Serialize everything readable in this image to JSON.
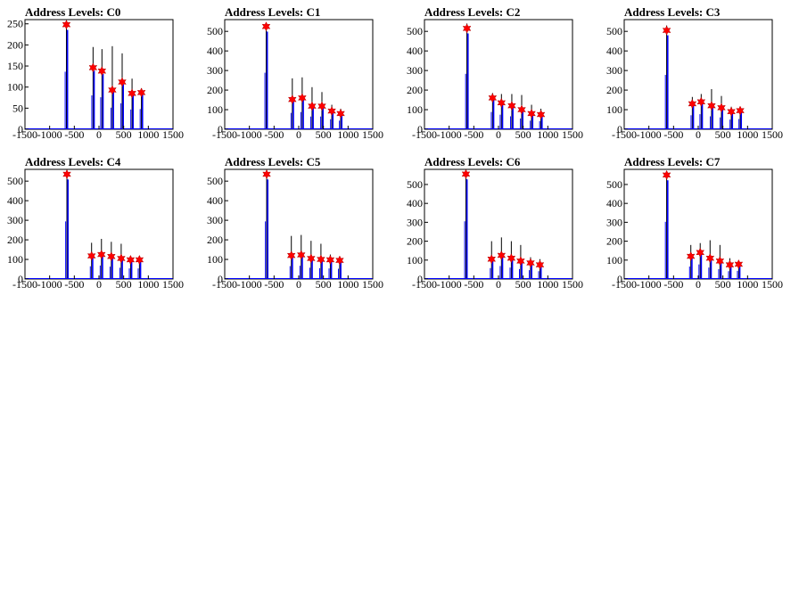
{
  "colors": {
    "hist": "#0000ff",
    "peak_marker": "#ff0000",
    "axis": "#000000"
  },
  "chart_data": [
    {
      "type": "histogram",
      "title": "Address Levels: C0",
      "xlim": [
        -1500,
        1500
      ],
      "ylim": [
        0,
        260
      ],
      "xticks": [
        "-1500",
        "-1000",
        "-500",
        "0",
        "500",
        "1000",
        "1500"
      ],
      "yticks": [
        0,
        50,
        100,
        150,
        200,
        250
      ],
      "peaks": [
        {
          "x": -660,
          "y": 248
        },
        {
          "x": -120,
          "y": 146
        },
        {
          "x": 60,
          "y": 138
        },
        {
          "x": 270,
          "y": 93
        },
        {
          "x": 470,
          "y": 112
        },
        {
          "x": 670,
          "y": 85
        },
        {
          "x": 860,
          "y": 87
        }
      ],
      "spikes": [
        {
          "x": -660,
          "y": 255
        },
        {
          "x": -120,
          "y": 195
        },
        {
          "x": 60,
          "y": 190
        },
        {
          "x": 270,
          "y": 197
        },
        {
          "x": 470,
          "y": 180
        },
        {
          "x": 670,
          "y": 120
        },
        {
          "x": 860,
          "y": 97
        }
      ]
    },
    {
      "type": "histogram",
      "title": "Address Levels: C1",
      "xlim": [
        -1500,
        1500
      ],
      "ylim": [
        0,
        560
      ],
      "xticks": [
        "-1500",
        "-1000",
        "-500",
        "0",
        "500",
        "1000",
        "1500"
      ],
      "yticks": [
        0,
        100,
        200,
        300,
        400,
        500
      ],
      "peaks": [
        {
          "x": -660,
          "y": 525
        },
        {
          "x": -130,
          "y": 152
        },
        {
          "x": 70,
          "y": 160
        },
        {
          "x": 270,
          "y": 118
        },
        {
          "x": 470,
          "y": 118
        },
        {
          "x": 670,
          "y": 93
        },
        {
          "x": 850,
          "y": 80
        }
      ],
      "spikes": [
        {
          "x": -660,
          "y": 540
        },
        {
          "x": -130,
          "y": 260
        },
        {
          "x": 70,
          "y": 265
        },
        {
          "x": 270,
          "y": 215
        },
        {
          "x": 470,
          "y": 190
        },
        {
          "x": 670,
          "y": 125
        },
        {
          "x": 850,
          "y": 105
        }
      ]
    },
    {
      "type": "histogram",
      "title": "Address Levels: C2",
      "xlim": [
        -1500,
        1500
      ],
      "ylim": [
        0,
        560
      ],
      "xticks": [
        "-1500",
        "-1000",
        "-500",
        "0",
        "500",
        "1000",
        "1500"
      ],
      "yticks": [
        0,
        100,
        200,
        300,
        400,
        500
      ],
      "peaks": [
        {
          "x": -640,
          "y": 515
        },
        {
          "x": -120,
          "y": 160
        },
        {
          "x": 60,
          "y": 135
        },
        {
          "x": 270,
          "y": 120
        },
        {
          "x": 470,
          "y": 100
        },
        {
          "x": 670,
          "y": 80
        },
        {
          "x": 860,
          "y": 75
        }
      ],
      "spikes": [
        {
          "x": -640,
          "y": 540
        },
        {
          "x": -120,
          "y": 185
        },
        {
          "x": 60,
          "y": 180
        },
        {
          "x": 270,
          "y": 180
        },
        {
          "x": 470,
          "y": 175
        },
        {
          "x": 670,
          "y": 125
        },
        {
          "x": 860,
          "y": 105
        }
      ]
    },
    {
      "type": "histogram",
      "title": "Address Levels: C3",
      "xlim": [
        -1500,
        1500
      ],
      "ylim": [
        0,
        560
      ],
      "xticks": [
        "-1500",
        "-1000",
        "-500",
        "0",
        "500",
        "1000",
        "1500"
      ],
      "yticks": [
        0,
        100,
        200,
        300,
        400,
        500
      ],
      "peaks": [
        {
          "x": -640,
          "y": 505
        },
        {
          "x": -120,
          "y": 130
        },
        {
          "x": 60,
          "y": 140
        },
        {
          "x": 270,
          "y": 120
        },
        {
          "x": 470,
          "y": 110
        },
        {
          "x": 670,
          "y": 90
        },
        {
          "x": 850,
          "y": 95
        }
      ],
      "spikes": [
        {
          "x": -640,
          "y": 530
        },
        {
          "x": -120,
          "y": 165
        },
        {
          "x": 60,
          "y": 180
        },
        {
          "x": 270,
          "y": 205
        },
        {
          "x": 470,
          "y": 170
        },
        {
          "x": 670,
          "y": 115
        },
        {
          "x": 850,
          "y": 110
        }
      ]
    },
    {
      "type": "histogram",
      "title": "Address Levels: C4",
      "xlim": [
        -1500,
        1500
      ],
      "ylim": [
        0,
        560
      ],
      "xticks": [
        "-1500",
        "-1000",
        "-500",
        "0",
        "500",
        "1000",
        "1500"
      ],
      "yticks": [
        0,
        100,
        200,
        300,
        400,
        500
      ],
      "peaks": [
        {
          "x": -650,
          "y": 535
        },
        {
          "x": -150,
          "y": 118
        },
        {
          "x": 50,
          "y": 125
        },
        {
          "x": 250,
          "y": 115
        },
        {
          "x": 450,
          "y": 105
        },
        {
          "x": 640,
          "y": 98
        },
        {
          "x": 820,
          "y": 98
        }
      ],
      "spikes": [
        {
          "x": -650,
          "y": 545
        },
        {
          "x": -150,
          "y": 185
        },
        {
          "x": 50,
          "y": 205
        },
        {
          "x": 250,
          "y": 190
        },
        {
          "x": 450,
          "y": 180
        },
        {
          "x": 640,
          "y": 115
        },
        {
          "x": 820,
          "y": 110
        }
      ]
    },
    {
      "type": "histogram",
      "title": "Address Levels: C5",
      "xlim": [
        -1500,
        1500
      ],
      "ylim": [
        0,
        560
      ],
      "xticks": [
        "-1500",
        "-1000",
        "-500",
        "0",
        "500",
        "1000",
        "1500"
      ],
      "yticks": [
        0,
        100,
        200,
        300,
        400,
        500
      ],
      "peaks": [
        {
          "x": -650,
          "y": 535
        },
        {
          "x": -150,
          "y": 120
        },
        {
          "x": 50,
          "y": 123
        },
        {
          "x": 250,
          "y": 105
        },
        {
          "x": 450,
          "y": 100
        },
        {
          "x": 640,
          "y": 98
        },
        {
          "x": 830,
          "y": 95
        }
      ],
      "spikes": [
        {
          "x": -650,
          "y": 545
        },
        {
          "x": -150,
          "y": 220
        },
        {
          "x": 50,
          "y": 225
        },
        {
          "x": 250,
          "y": 195
        },
        {
          "x": 450,
          "y": 180
        },
        {
          "x": 640,
          "y": 125
        },
        {
          "x": 830,
          "y": 110
        }
      ]
    },
    {
      "type": "histogram",
      "title": "Address Levels: C6",
      "xlim": [
        -1500,
        1500
      ],
      "ylim": [
        0,
        580
      ],
      "xticks": [
        "-1500",
        "-1000",
        "-500",
        "0",
        "500",
        "1000",
        "1500"
      ],
      "yticks": [
        0,
        100,
        200,
        300,
        400,
        500
      ],
      "peaks": [
        {
          "x": -660,
          "y": 555
        },
        {
          "x": -140,
          "y": 105
        },
        {
          "x": 60,
          "y": 125
        },
        {
          "x": 260,
          "y": 110
        },
        {
          "x": 450,
          "y": 95
        },
        {
          "x": 650,
          "y": 85
        },
        {
          "x": 840,
          "y": 75
        }
      ],
      "spikes": [
        {
          "x": -660,
          "y": 570
        },
        {
          "x": -140,
          "y": 200
        },
        {
          "x": 60,
          "y": 220
        },
        {
          "x": 260,
          "y": 200
        },
        {
          "x": 450,
          "y": 180
        },
        {
          "x": 650,
          "y": 115
        },
        {
          "x": 840,
          "y": 105
        }
      ]
    },
    {
      "type": "histogram",
      "title": "Address Levels: C7",
      "xlim": [
        -1500,
        1500
      ],
      "ylim": [
        0,
        580
      ],
      "xticks": [
        "-1500",
        "-1000",
        "-500",
        "0",
        "500",
        "1000",
        "1500"
      ],
      "yticks": [
        0,
        100,
        200,
        300,
        400,
        500
      ],
      "peaks": [
        {
          "x": -640,
          "y": 550
        },
        {
          "x": -150,
          "y": 120
        },
        {
          "x": 40,
          "y": 140
        },
        {
          "x": 240,
          "y": 110
        },
        {
          "x": 440,
          "y": 95
        },
        {
          "x": 640,
          "y": 75
        },
        {
          "x": 820,
          "y": 78
        }
      ],
      "spikes": [
        {
          "x": -640,
          "y": 570
        },
        {
          "x": -150,
          "y": 180
        },
        {
          "x": 40,
          "y": 190
        },
        {
          "x": 240,
          "y": 205
        },
        {
          "x": 440,
          "y": 180
        },
        {
          "x": 640,
          "y": 110
        },
        {
          "x": 820,
          "y": 95
        }
      ]
    }
  ]
}
